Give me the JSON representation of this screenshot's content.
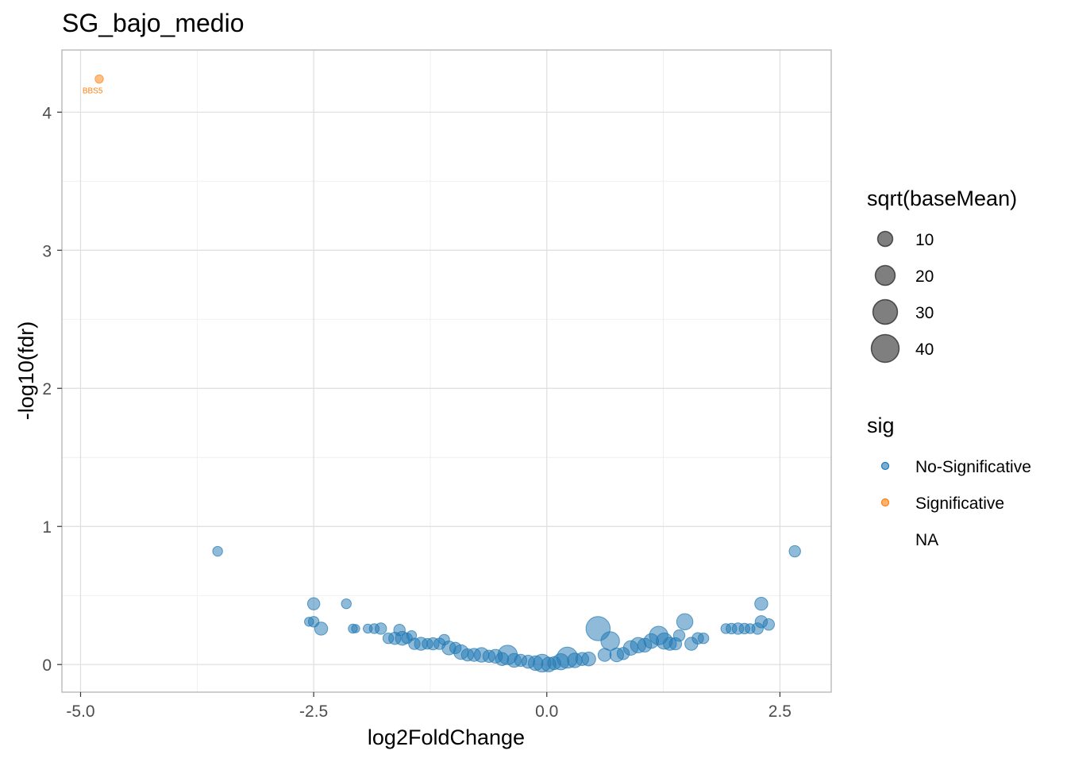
{
  "chart_data": {
    "type": "scatter",
    "title": "SG_bajo_medio",
    "xlabel": "log2FoldChange",
    "ylabel": "-log10(fdr)",
    "xlim": [
      -5.2,
      3.05
    ],
    "ylim": [
      -0.2,
      4.45
    ],
    "xticks": [
      -5.0,
      -2.5,
      0.0,
      2.5
    ],
    "xtick_labels": [
      "-5.0",
      "-2.5",
      "0.0",
      "2.5"
    ],
    "yticks": [
      0,
      1,
      2,
      3,
      4
    ],
    "ytick_labels": [
      "0",
      "1",
      "2",
      "3",
      "4"
    ],
    "grid": true,
    "colors": {
      "No-Significative": "#1f77b4",
      "Significative": "#ff7f0e"
    },
    "legend_size": {
      "title": "sqrt(baseMean)",
      "entries": [
        {
          "label": "10",
          "value": 10
        },
        {
          "label": "20",
          "value": 20
        },
        {
          "label": "30",
          "value": 30
        },
        {
          "label": "40",
          "value": 40
        }
      ]
    },
    "legend_sig": {
      "title": "sig",
      "entries": [
        {
          "label": "No-Significative",
          "color": "#1f77b4"
        },
        {
          "label": "Significative",
          "color": "#ff7f0e"
        },
        {
          "label": "NA",
          "color": ""
        }
      ]
    },
    "annotations": [
      {
        "text": "BBS5",
        "x": -4.98,
        "y": 4.16,
        "color": "#ff7f0e"
      }
    ],
    "series": [
      {
        "name": "Significative",
        "points": [
          {
            "x": -4.8,
            "y": 4.24,
            "s": 6
          }
        ]
      },
      {
        "name": "No-Significative",
        "points": [
          {
            "x": -3.53,
            "y": 0.82,
            "s": 8
          },
          {
            "x": 2.66,
            "y": 0.82,
            "s": 10
          },
          {
            "x": -2.5,
            "y": 0.44,
            "s": 11
          },
          {
            "x": -2.15,
            "y": 0.44,
            "s": 8
          },
          {
            "x": 2.3,
            "y": 0.44,
            "s": 12
          },
          {
            "x": -2.55,
            "y": 0.31,
            "s": 7
          },
          {
            "x": -2.5,
            "y": 0.31,
            "s": 9
          },
          {
            "x": -2.42,
            "y": 0.26,
            "s": 12
          },
          {
            "x": -2.08,
            "y": 0.26,
            "s": 7
          },
          {
            "x": -2.05,
            "y": 0.26,
            "s": 6
          },
          {
            "x": -1.92,
            "y": 0.26,
            "s": 7
          },
          {
            "x": -1.85,
            "y": 0.26,
            "s": 8
          },
          {
            "x": -1.78,
            "y": 0.26,
            "s": 10
          },
          {
            "x": -1.7,
            "y": 0.19,
            "s": 9
          },
          {
            "x": -1.63,
            "y": 0.19,
            "s": 11
          },
          {
            "x": -1.58,
            "y": 0.25,
            "s": 10
          },
          {
            "x": -1.55,
            "y": 0.19,
            "s": 13
          },
          {
            "x": -1.5,
            "y": 0.19,
            "s": 9
          },
          {
            "x": -1.45,
            "y": 0.21,
            "s": 8
          },
          {
            "x": -1.42,
            "y": 0.15,
            "s": 10
          },
          {
            "x": -1.35,
            "y": 0.15,
            "s": 12
          },
          {
            "x": -1.28,
            "y": 0.15,
            "s": 9
          },
          {
            "x": -1.22,
            "y": 0.15,
            "s": 11
          },
          {
            "x": -1.15,
            "y": 0.15,
            "s": 10
          },
          {
            "x": -1.1,
            "y": 0.18,
            "s": 9
          },
          {
            "x": -1.05,
            "y": 0.12,
            "s": 13
          },
          {
            "x": -0.98,
            "y": 0.12,
            "s": 10
          },
          {
            "x": -0.92,
            "y": 0.09,
            "s": 14
          },
          {
            "x": -0.85,
            "y": 0.07,
            "s": 11
          },
          {
            "x": -0.78,
            "y": 0.07,
            "s": 12
          },
          {
            "x": -0.7,
            "y": 0.07,
            "s": 14
          },
          {
            "x": -0.62,
            "y": 0.06,
            "s": 11
          },
          {
            "x": -0.55,
            "y": 0.06,
            "s": 13
          },
          {
            "x": -0.48,
            "y": 0.04,
            "s": 12
          },
          {
            "x": -0.42,
            "y": 0.07,
            "s": 20
          },
          {
            "x": -0.35,
            "y": 0.03,
            "s": 13
          },
          {
            "x": -0.28,
            "y": 0.03,
            "s": 11
          },
          {
            "x": -0.2,
            "y": 0.02,
            "s": 12
          },
          {
            "x": -0.12,
            "y": 0.01,
            "s": 14
          },
          {
            "x": -0.05,
            "y": 0.01,
            "s": 18
          },
          {
            "x": 0.02,
            "y": 0.0,
            "s": 14
          },
          {
            "x": 0.08,
            "y": 0.01,
            "s": 12
          },
          {
            "x": 0.15,
            "y": 0.02,
            "s": 16
          },
          {
            "x": 0.22,
            "y": 0.05,
            "s": 22
          },
          {
            "x": 0.3,
            "y": 0.03,
            "s": 14
          },
          {
            "x": 0.38,
            "y": 0.04,
            "s": 12
          },
          {
            "x": 0.45,
            "y": 0.04,
            "s": 13
          },
          {
            "x": 0.55,
            "y": 0.26,
            "s": 26
          },
          {
            "x": 0.62,
            "y": 0.07,
            "s": 12
          },
          {
            "x": 0.68,
            "y": 0.17,
            "s": 19
          },
          {
            "x": 0.75,
            "y": 0.07,
            "s": 13
          },
          {
            "x": 0.82,
            "y": 0.08,
            "s": 11
          },
          {
            "x": 0.9,
            "y": 0.12,
            "s": 14
          },
          {
            "x": 0.98,
            "y": 0.14,
            "s": 15
          },
          {
            "x": 1.05,
            "y": 0.14,
            "s": 13
          },
          {
            "x": 1.12,
            "y": 0.17,
            "s": 14
          },
          {
            "x": 1.2,
            "y": 0.21,
            "s": 19
          },
          {
            "x": 1.26,
            "y": 0.17,
            "s": 16
          },
          {
            "x": 1.32,
            "y": 0.15,
            "s": 12
          },
          {
            "x": 1.38,
            "y": 0.15,
            "s": 11
          },
          {
            "x": 1.42,
            "y": 0.21,
            "s": 10
          },
          {
            "x": 1.48,
            "y": 0.31,
            "s": 16
          },
          {
            "x": 1.55,
            "y": 0.15,
            "s": 12
          },
          {
            "x": 1.62,
            "y": 0.19,
            "s": 10
          },
          {
            "x": 1.68,
            "y": 0.19,
            "s": 9
          },
          {
            "x": 1.92,
            "y": 0.26,
            "s": 8
          },
          {
            "x": 1.98,
            "y": 0.26,
            "s": 9
          },
          {
            "x": 2.05,
            "y": 0.26,
            "s": 10
          },
          {
            "x": 2.12,
            "y": 0.26,
            "s": 9
          },
          {
            "x": 2.18,
            "y": 0.26,
            "s": 8
          },
          {
            "x": 2.26,
            "y": 0.26,
            "s": 10
          },
          {
            "x": 2.3,
            "y": 0.31,
            "s": 11
          },
          {
            "x": 2.38,
            "y": 0.29,
            "s": 10
          }
        ]
      }
    ]
  }
}
